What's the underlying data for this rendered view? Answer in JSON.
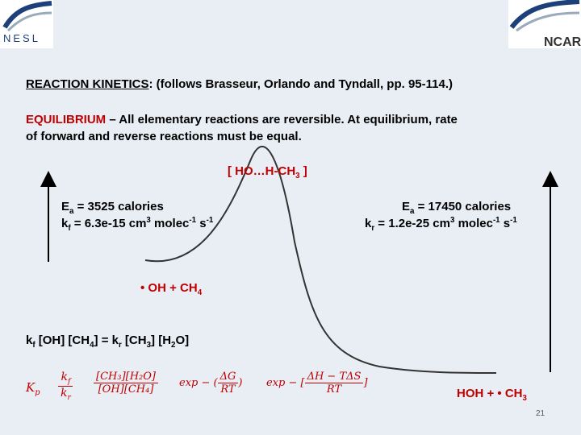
{
  "logos": {
    "left": "NESL",
    "right": "NCAR"
  },
  "heading": {
    "title": "REACTION KINETICS",
    "rest": ":  (follows Brasseur, Orlando and Tyndall, pp. 95-114.)"
  },
  "equilibrium": {
    "label": "EQUILIBRIUM",
    "line1": " – All elementary reactions are reversible. At equilibrium, rate",
    "line2": "of forward and reverse reactions must be equal."
  },
  "transition_state": {
    "a": "[ HO…H-CH",
    "sub": "3",
    "b": " ]"
  },
  "forward": {
    "ea_label": "E",
    "ea_sub": "a",
    "ea_value": " = 3525 calories",
    "k_label": "k",
    "k_sub": "f",
    "k_value": " = 6.3e-15 cm",
    "k_exp1": "3",
    "k_unit": " molec",
    "k_exp2": "-1",
    "k_s": " s",
    "k_exp3": "-1"
  },
  "reverse": {
    "ea_label": "E",
    "ea_sub": "a",
    "ea_value": " = 17450 calories",
    "k_label": "k",
    "k_sub": "r",
    "k_value": " = 1.2e-25 cm",
    "k_exp1": "3",
    "k_unit": " molec",
    "k_exp2": "-1",
    "k_s": " s",
    "k_exp3": "-1"
  },
  "reactants": {
    "a": "• OH + CH",
    "sub": "4"
  },
  "products": {
    "text": "HOH + • CH",
    "sub": "3"
  },
  "equation": {
    "p1": "k",
    "s1": "f",
    "p2": " [OH] [CH",
    "s2": "4",
    "p3": "] = k",
    "s3": "r",
    "p4": " [CH",
    "s4": "3",
    "p5": "] [H",
    "s5": "2",
    "p6": "O]"
  },
  "formula": {
    "kp": "K",
    "kp_sub": "p",
    "kf_num": "k",
    "kf_num_sub": "f",
    "kr_den": "k",
    "kr_den_sub": "r",
    "conc_num": "[CH₃][H₂O]",
    "conc_den": "[OH][CH₄]",
    "exp1_prefix": "exp −",
    "exp1_num": "ΔG",
    "exp1_den": "RT",
    "exp2_prefix": "exp − [",
    "exp2_num": "ΔH − TΔS",
    "exp2_den": "RT",
    "exp2_suffix": "]"
  },
  "page_number": "21",
  "colors": {
    "accent": "#c00000",
    "text": "#000000",
    "background": "#e9eef5"
  }
}
